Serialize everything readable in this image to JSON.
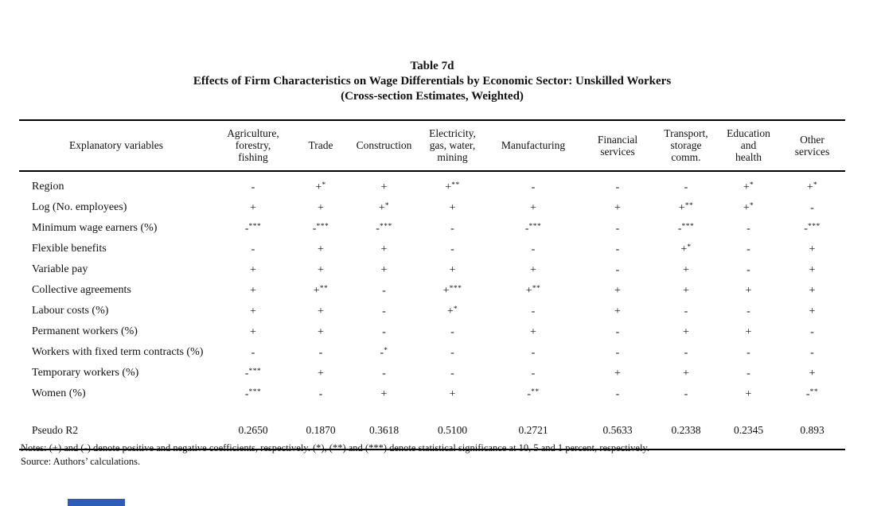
{
  "title": {
    "number": "Table 7d",
    "main": "Effects of Firm Characteristics on Wage Differentials by Economic Sector: Unskilled Workers",
    "subtitle": "(Cross-section Estimates, Weighted)"
  },
  "table": {
    "label_header": "Explanatory variables",
    "columns": [
      "Agriculture,\nforestry,\nfishing",
      "Trade",
      "Construction",
      "Electricity,\ngas, water,\nmining",
      "Manufacturing",
      "Financial\nservices",
      "Transport,\nstorage\ncomm.",
      "Education\nand\nhealth",
      "Other\nservices"
    ],
    "rows": [
      {
        "label": "Region",
        "cells": [
          "-",
          "+*",
          "+",
          "+**",
          "-",
          "-",
          "-",
          "+*",
          "+*"
        ]
      },
      {
        "label": "Log (No. employees)",
        "cells": [
          "+",
          "+",
          "+*",
          "+",
          "+",
          "+",
          "+**",
          "+*",
          "-"
        ]
      },
      {
        "label": "Minimum wage earners (%)",
        "cells": [
          "-***",
          "-***",
          "-***",
          "-",
          "-***",
          "-",
          "-***",
          "-",
          "-***"
        ]
      },
      {
        "label": "Flexible benefits",
        "cells": [
          "-",
          "+",
          "+",
          "-",
          "-",
          "-",
          "+*",
          "-",
          "+"
        ]
      },
      {
        "label": "Variable pay",
        "cells": [
          "+",
          "+",
          "+",
          "+",
          "+",
          "-",
          "+",
          "-",
          "+"
        ]
      },
      {
        "label": "Collective agreements",
        "cells": [
          "+",
          "+**",
          "-",
          "+***",
          "+**",
          "+",
          "+",
          "+",
          "+"
        ]
      },
      {
        "label": "Labour costs (%)",
        "cells": [
          "+",
          "+",
          "-",
          "+*",
          "-",
          "+",
          "-",
          "-",
          "+"
        ]
      },
      {
        "label": "Permanent workers (%)",
        "cells": [
          "+",
          "+",
          "-",
          "-",
          "+",
          "-",
          "+",
          "+",
          "-"
        ]
      },
      {
        "label": "Workers with fixed term contracts (%)",
        "cells": [
          "-",
          "-",
          "-*",
          "-",
          "-",
          "-",
          "-",
          "-",
          "-"
        ]
      },
      {
        "label": "Temporary workers (%)",
        "cells": [
          "-***",
          "+",
          "-",
          "-",
          "-",
          "+",
          "+",
          "-",
          "+"
        ]
      },
      {
        "label": "Women (%)",
        "cells": [
          "-***",
          "-",
          "+",
          "+",
          "-**",
          "-",
          "-",
          "+",
          "-**"
        ]
      }
    ],
    "summary_row": {
      "label": "Pseudo R2",
      "values": [
        "0.2650",
        "0.1870",
        "0.3618",
        "0.5100",
        "0.2721",
        "0.5633",
        "0.2338",
        "0.2345",
        "0.893"
      ]
    }
  },
  "footer": {
    "notes": "Notes: (+) and (-) denote positive and negative coefficients, respectively. (*), (**) and (***) denote statistical significance at 10, 5 and 1 percent, respectively.",
    "source": "Source: Authors’ calculations."
  },
  "accent": {
    "taskbar_blue": "#2e5cb8"
  }
}
